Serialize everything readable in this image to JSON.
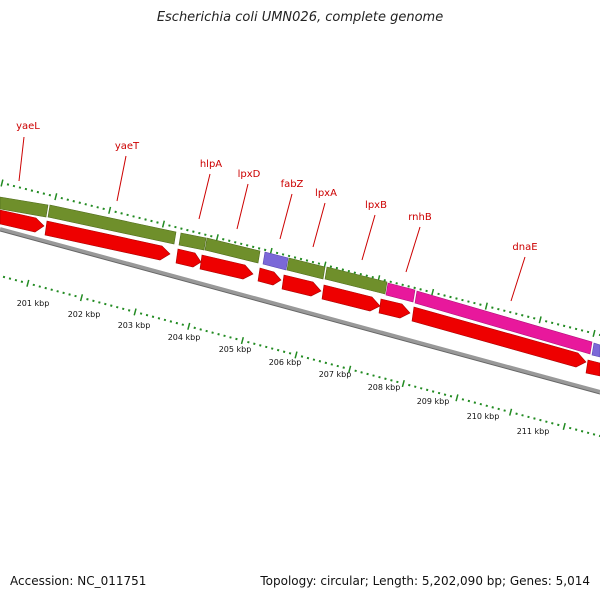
{
  "title": "Escherichia coli UMN026, complete genome",
  "footer": {
    "accession": "Accession: NC_011751",
    "summary": "Topology: circular; Length: 5,202,090 bp; Genes: 5,014"
  },
  "colors": {
    "cds_strand": "#ee0000",
    "gene_olive": "#6f8f2b",
    "gene_purple": "#7b68d8",
    "gene_magenta": "#e8189c",
    "backbone": "#888888",
    "tick_green": "#228b22",
    "gene_label": "#cc0000"
  },
  "genes": [
    {
      "name": "yaeL"
    },
    {
      "name": "yaeT"
    },
    {
      "name": "hlpA"
    },
    {
      "name": "lpxD"
    },
    {
      "name": "fabZ"
    },
    {
      "name": "lpxA"
    },
    {
      "name": "lpxB"
    },
    {
      "name": "rnhB"
    },
    {
      "name": "dnaE"
    }
  ],
  "scale_labels": [
    "201 kbp",
    "202 kbp",
    "203 kbp",
    "204 kbp",
    "205 kbp",
    "206 kbp",
    "207 kbp",
    "208 kbp",
    "209 kbp",
    "210 kbp",
    "211 kbp"
  ]
}
